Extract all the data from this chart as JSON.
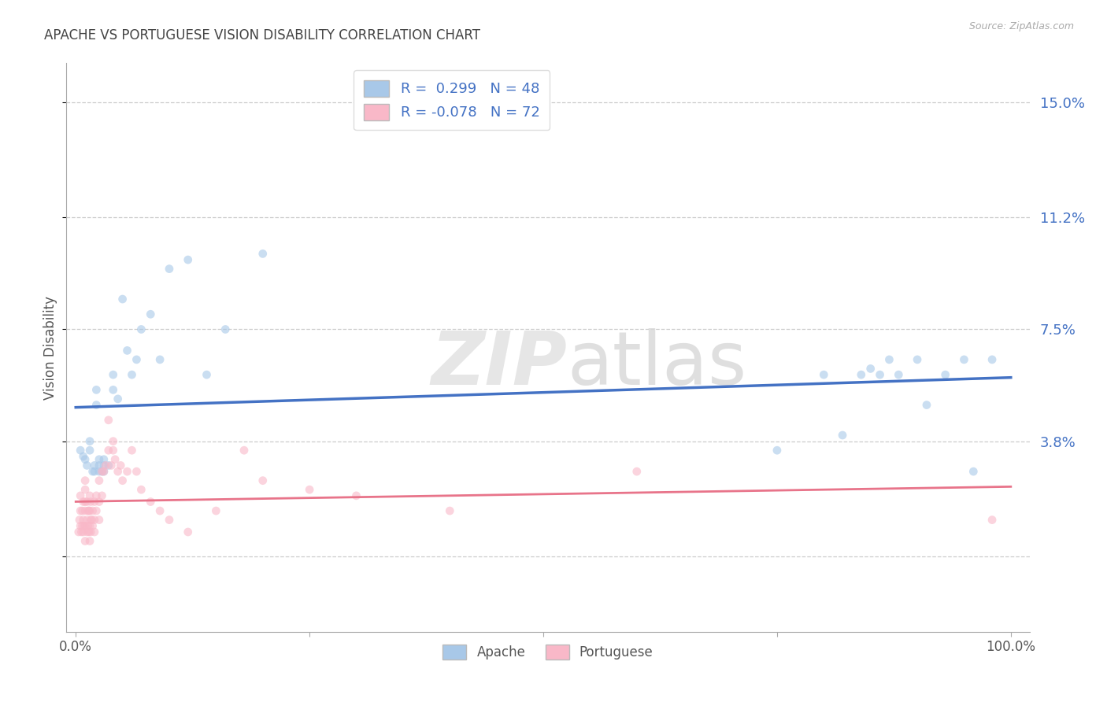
{
  "title": "APACHE VS PORTUGUESE VISION DISABILITY CORRELATION CHART",
  "source": "Source: ZipAtlas.com",
  "ylabel": "Vision Disability",
  "yticks": [
    0.0,
    0.038,
    0.075,
    0.112,
    0.15
  ],
  "ytick_labels": [
    "",
    "3.8%",
    "7.5%",
    "11.2%",
    "15.0%"
  ],
  "xlim": [
    -0.01,
    1.02
  ],
  "ylim": [
    -0.025,
    0.163
  ],
  "apache_color": "#A8C8E8",
  "portuguese_color": "#F9B8C8",
  "apache_line_color": "#4472C4",
  "portuguese_line_color": "#E8748A",
  "apache_R": 0.299,
  "apache_N": 48,
  "portuguese_R": -0.078,
  "portuguese_N": 72,
  "apache_x": [
    0.005,
    0.008,
    0.01,
    0.012,
    0.015,
    0.015,
    0.018,
    0.02,
    0.02,
    0.022,
    0.022,
    0.025,
    0.025,
    0.025,
    0.028,
    0.03,
    0.03,
    0.03,
    0.035,
    0.04,
    0.04,
    0.045,
    0.05,
    0.055,
    0.06,
    0.065,
    0.07,
    0.08,
    0.09,
    0.1,
    0.12,
    0.14,
    0.16,
    0.2,
    0.75,
    0.8,
    0.82,
    0.84,
    0.85,
    0.86,
    0.87,
    0.88,
    0.9,
    0.91,
    0.93,
    0.95,
    0.96,
    0.98
  ],
  "apache_y": [
    0.035,
    0.033,
    0.032,
    0.03,
    0.035,
    0.038,
    0.028,
    0.028,
    0.03,
    0.05,
    0.055,
    0.028,
    0.03,
    0.032,
    0.028,
    0.028,
    0.03,
    0.032,
    0.03,
    0.055,
    0.06,
    0.052,
    0.085,
    0.068,
    0.06,
    0.065,
    0.075,
    0.08,
    0.065,
    0.095,
    0.098,
    0.06,
    0.075,
    0.1,
    0.035,
    0.06,
    0.04,
    0.06,
    0.062,
    0.06,
    0.065,
    0.06,
    0.065,
    0.05,
    0.06,
    0.065,
    0.028,
    0.065
  ],
  "portuguese_x": [
    0.003,
    0.004,
    0.005,
    0.005,
    0.005,
    0.006,
    0.007,
    0.007,
    0.008,
    0.008,
    0.008,
    0.009,
    0.01,
    0.01,
    0.01,
    0.01,
    0.01,
    0.01,
    0.012,
    0.012,
    0.012,
    0.013,
    0.013,
    0.014,
    0.014,
    0.015,
    0.015,
    0.015,
    0.015,
    0.016,
    0.016,
    0.016,
    0.017,
    0.018,
    0.018,
    0.02,
    0.02,
    0.02,
    0.022,
    0.022,
    0.025,
    0.025,
    0.025,
    0.028,
    0.028,
    0.03,
    0.032,
    0.035,
    0.035,
    0.038,
    0.04,
    0.04,
    0.042,
    0.045,
    0.048,
    0.05,
    0.055,
    0.06,
    0.065,
    0.07,
    0.08,
    0.09,
    0.1,
    0.12,
    0.15,
    0.18,
    0.2,
    0.25,
    0.3,
    0.4,
    0.6,
    0.98
  ],
  "portuguese_y": [
    0.008,
    0.012,
    0.01,
    0.015,
    0.02,
    0.008,
    0.01,
    0.015,
    0.008,
    0.012,
    0.018,
    0.01,
    0.005,
    0.01,
    0.015,
    0.018,
    0.022,
    0.025,
    0.008,
    0.012,
    0.018,
    0.01,
    0.015,
    0.008,
    0.015,
    0.005,
    0.01,
    0.015,
    0.02,
    0.008,
    0.012,
    0.018,
    0.012,
    0.01,
    0.015,
    0.008,
    0.012,
    0.018,
    0.015,
    0.02,
    0.012,
    0.018,
    0.025,
    0.02,
    0.028,
    0.028,
    0.03,
    0.035,
    0.045,
    0.03,
    0.038,
    0.035,
    0.032,
    0.028,
    0.03,
    0.025,
    0.028,
    0.035,
    0.028,
    0.022,
    0.018,
    0.015,
    0.012,
    0.008,
    0.015,
    0.035,
    0.025,
    0.022,
    0.02,
    0.015,
    0.028,
    0.012
  ],
  "watermark_zip": "ZIP",
  "watermark_atlas": "atlas",
  "background_color": "#ffffff",
  "grid_color": "#cccccc",
  "title_color": "#444444",
  "legend_apache_label": "R =  0.299   N = 48",
  "legend_portuguese_label": "R = -0.078   N = 72",
  "apache_legend_label": "Apache",
  "portuguese_legend_label": "Portuguese",
  "marker_size": 60,
  "marker_alpha": 0.6
}
